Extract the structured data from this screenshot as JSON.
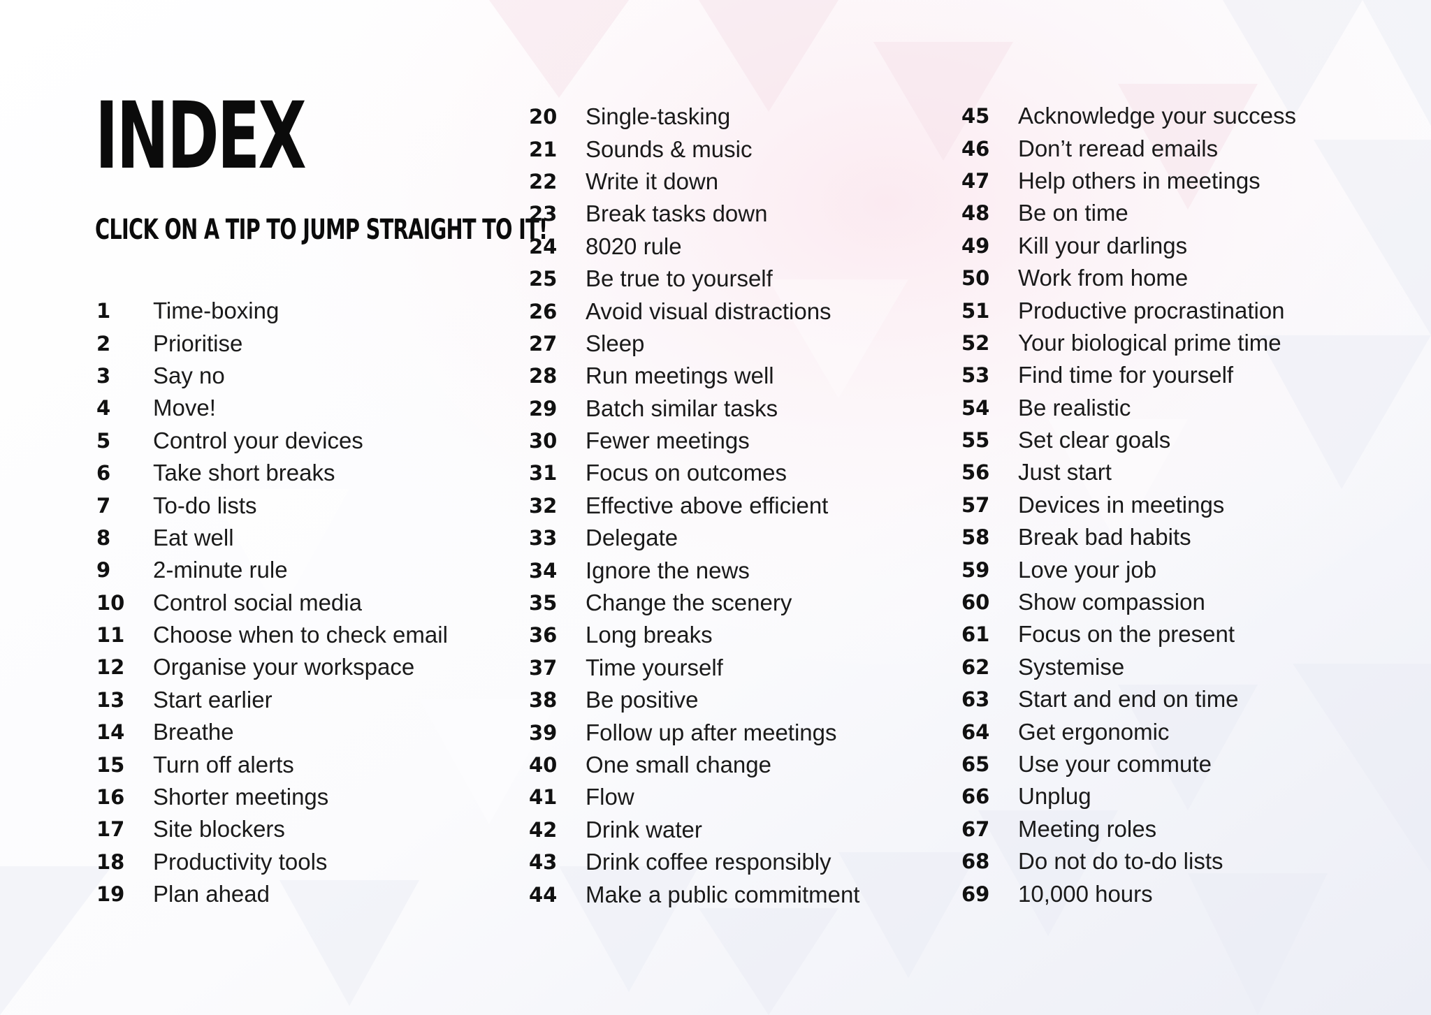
{
  "title": "INDEX",
  "subtitle": "CLICK ON A TIP TO JUMP STRAIGHT TO IT!",
  "columns": [
    [
      {
        "num": "1",
        "label": "Time-boxing"
      },
      {
        "num": "2",
        "label": "Prioritise"
      },
      {
        "num": "3",
        "label": "Say no"
      },
      {
        "num": "4",
        "label": "Move!"
      },
      {
        "num": "5",
        "label": "Control your devices"
      },
      {
        "num": "6",
        "label": "Take short breaks"
      },
      {
        "num": "7",
        "label": "To-do lists"
      },
      {
        "num": "8",
        "label": "Eat well"
      },
      {
        "num": "9",
        "label": "2-minute rule"
      },
      {
        "num": "10",
        "label": "Control social media"
      },
      {
        "num": "11",
        "label": "Choose when to check email"
      },
      {
        "num": "12",
        "label": "Organise your workspace"
      },
      {
        "num": "13",
        "label": "Start earlier"
      },
      {
        "num": "14",
        "label": "Breathe"
      },
      {
        "num": "15",
        "label": "Turn off alerts"
      },
      {
        "num": "16",
        "label": "Shorter meetings"
      },
      {
        "num": "17",
        "label": "Site blockers"
      },
      {
        "num": "18",
        "label": "Productivity tools"
      },
      {
        "num": "19",
        "label": "Plan ahead"
      }
    ],
    [
      {
        "num": "20",
        "label": "Single-tasking"
      },
      {
        "num": "21",
        "label": "Sounds & music"
      },
      {
        "num": "22",
        "label": "Write it down"
      },
      {
        "num": "23",
        "label": "Break tasks down"
      },
      {
        "num": "24",
        "label": "8020 rule"
      },
      {
        "num": "25",
        "label": "Be true to yourself"
      },
      {
        "num": "26",
        "label": "Avoid visual distractions"
      },
      {
        "num": "27",
        "label": "Sleep"
      },
      {
        "num": "28",
        "label": "Run meetings well"
      },
      {
        "num": "29",
        "label": "Batch similar tasks"
      },
      {
        "num": "30",
        "label": "Fewer meetings"
      },
      {
        "num": "31",
        "label": "Focus on outcomes"
      },
      {
        "num": "32",
        "label": "Effective above efficient"
      },
      {
        "num": "33",
        "label": "Delegate"
      },
      {
        "num": "34",
        "label": "Ignore the news"
      },
      {
        "num": "35",
        "label": "Change the scenery"
      },
      {
        "num": "36",
        "label": "Long breaks"
      },
      {
        "num": "37",
        "label": "Time yourself"
      },
      {
        "num": "38",
        "label": "Be positive"
      },
      {
        "num": "39",
        "label": "Follow up after meetings"
      },
      {
        "num": "40",
        "label": "One small change"
      },
      {
        "num": "41",
        "label": "Flow"
      },
      {
        "num": "42",
        "label": "Drink water"
      },
      {
        "num": "43",
        "label": "Drink coffee responsibly"
      },
      {
        "num": "44",
        "label": "Make a public commitment"
      }
    ],
    [
      {
        "num": "45",
        "label": "Acknowledge your success"
      },
      {
        "num": "46",
        "label": "Don’t reread emails"
      },
      {
        "num": "47",
        "label": "Help others in meetings"
      },
      {
        "num": "48",
        "label": "Be on time"
      },
      {
        "num": "49",
        "label": "Kill your darlings"
      },
      {
        "num": "50",
        "label": "Work from home"
      },
      {
        "num": "51",
        "label": "Productive procrastination"
      },
      {
        "num": "52",
        "label": "Your biological prime time"
      },
      {
        "num": "53",
        "label": "Find time for yourself"
      },
      {
        "num": "54",
        "label": "Be realistic"
      },
      {
        "num": "55",
        "label": "Set clear goals"
      },
      {
        "num": "56",
        "label": "Just start"
      },
      {
        "num": "57",
        "label": "Devices in meetings"
      },
      {
        "num": "58",
        "label": "Break bad habits"
      },
      {
        "num": "59",
        "label": "Love your job"
      },
      {
        "num": "60",
        "label": "Show compassion"
      },
      {
        "num": "61",
        "label": "Focus on the present"
      },
      {
        "num": "62",
        "label": "Systemise"
      },
      {
        "num": "63",
        "label": "Start and end on time"
      },
      {
        "num": "64",
        "label": "Get ergonomic"
      },
      {
        "num": "65",
        "label": "Use your commute"
      },
      {
        "num": "66",
        "label": "Unplug"
      },
      {
        "num": "67",
        "label": "Meeting roles"
      },
      {
        "num": "68",
        "label": "Do not do to-do lists"
      },
      {
        "num": "69",
        "label": "10,000 hours"
      }
    ]
  ],
  "colors": {
    "text": "#111111",
    "background": "#ffffff",
    "accent_pink": "#f6dde6",
    "accent_lavender": "#dfe2f0"
  }
}
